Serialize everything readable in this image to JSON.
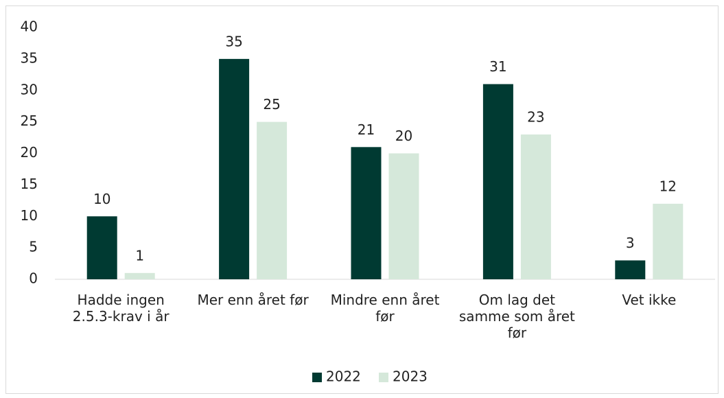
{
  "chart_data": {
    "type": "bar",
    "categories": [
      "Hadde ingen 2.5.3-krav i år",
      "Mer enn året før",
      "Mindre enn året før",
      "Om lag det samme som året før",
      "Vet ikke"
    ],
    "series": [
      {
        "name": "2022",
        "color": "#003a32",
        "values": [
          10,
          35,
          21,
          31,
          3
        ]
      },
      {
        "name": "2023",
        "color": "#d5e8da",
        "values": [
          1,
          25,
          20,
          23,
          12
        ]
      }
    ],
    "ylim": [
      0,
      40
    ],
    "yticks": [
      0,
      5,
      10,
      15,
      20,
      25,
      30,
      35,
      40
    ],
    "grid": false,
    "legend": "bottom"
  }
}
